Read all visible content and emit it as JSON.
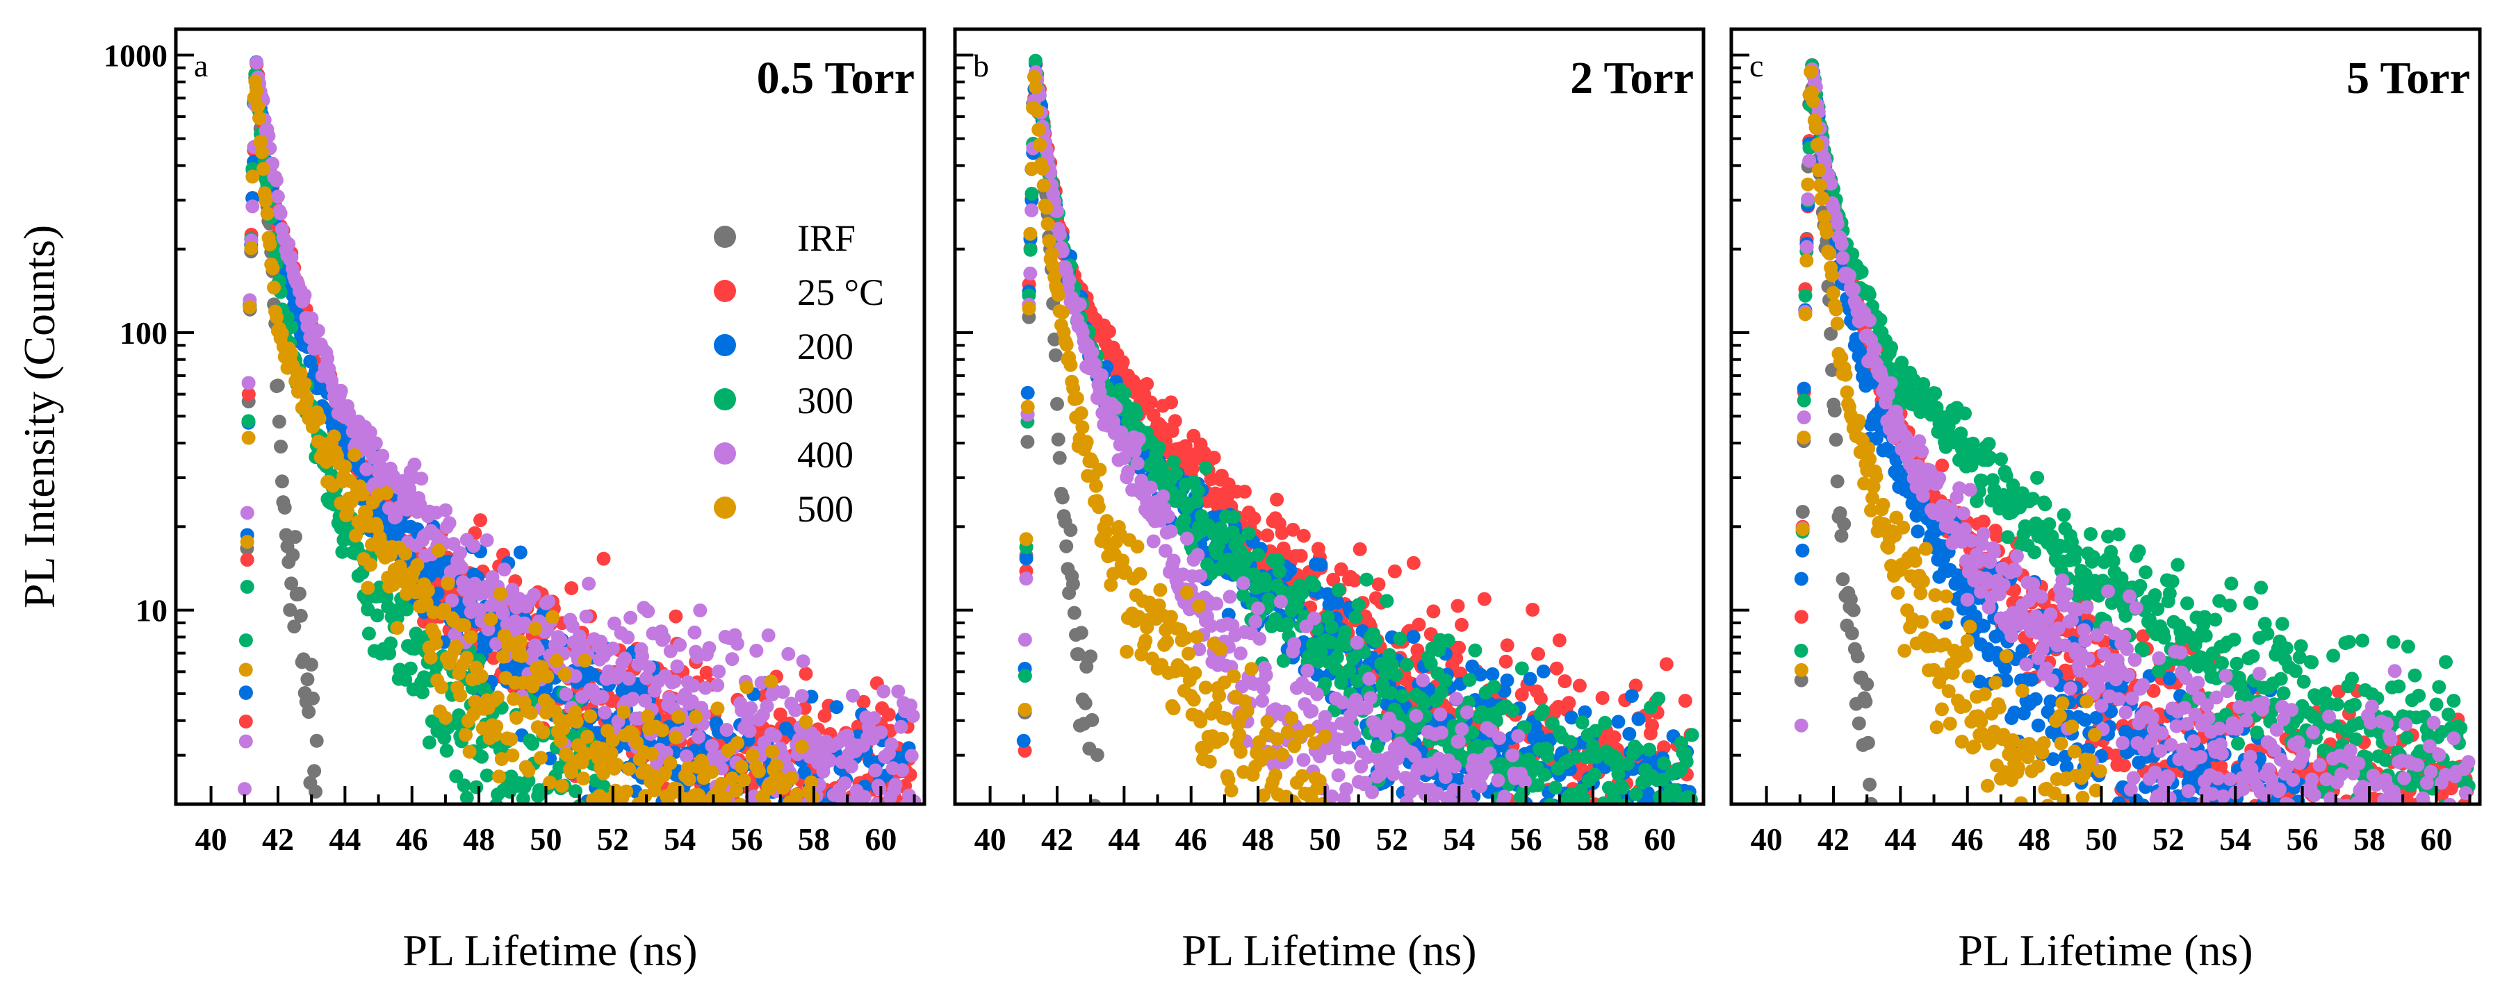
{
  "chart_data": {
    "type": "scatter",
    "y_scale": "log",
    "ylabel": "PL Intensity (Counts)",
    "xlabel": "PL Lifetime (ns)",
    "xlim": [
      38.95,
      61.3
    ],
    "ylim": [
      2,
      1240
    ],
    "x_ticks": [
      40,
      42,
      44,
      46,
      48,
      50,
      52,
      54,
      56,
      58,
      60
    ],
    "y_ticks": [
      10,
      100,
      1000
    ],
    "y_tick_labels": [
      "10",
      "100",
      "1000"
    ],
    "grid": false,
    "legend": {
      "placement": "center-right of panel a",
      "entries": [
        {
          "label": "IRF",
          "color": "#767676"
        },
        {
          "label": "25 °C",
          "color": "#ff4040"
        },
        {
          "label": "200",
          "color": "#0070e0"
        },
        {
          "label": "300",
          "color": "#00b06a"
        },
        {
          "label": "400",
          "color": "#c27ae0"
        },
        {
          "label": "500",
          "color": "#dc9a00"
        }
      ]
    },
    "panels": [
      {
        "letter": "a",
        "title": "0.5 Torr",
        "series": [
          {
            "name": "IRF",
            "points": [
              [
                41.0,
                2
              ],
              [
                41.15,
                100
              ],
              [
                41.3,
                900
              ],
              [
                41.5,
                500
              ],
              [
                41.8,
                200
              ],
              [
                42.0,
                60
              ],
              [
                42.2,
                20
              ],
              [
                42.5,
                10
              ],
              [
                42.8,
                6
              ],
              [
                43.0,
                4
              ],
              [
                43.2,
                2
              ]
            ]
          },
          {
            "name": "25 °C",
            "points": [
              [
                41.0,
                2
              ],
              [
                41.15,
                120
              ],
              [
                41.35,
                950
              ],
              [
                41.6,
                500
              ],
              [
                42.0,
                250
              ],
              [
                42.5,
                150
              ],
              [
                43.0,
                100
              ],
              [
                43.7,
                50
              ],
              [
                44.5,
                30
              ],
              [
                45.5,
                20
              ],
              [
                47,
                12
              ],
              [
                49,
                8
              ],
              [
                51,
                5
              ],
              [
                54,
                3.5
              ],
              [
                57,
                2.6
              ],
              [
                61,
                2.2
              ]
            ]
          },
          {
            "name": "200",
            "points": [
              [
                41.0,
                2
              ],
              [
                41.15,
                120
              ],
              [
                41.35,
                950
              ],
              [
                41.6,
                480
              ],
              [
                42.0,
                220
              ],
              [
                42.7,
                100
              ],
              [
                43.6,
                50
              ],
              [
                44.8,
                25
              ],
              [
                46,
                15
              ],
              [
                47.5,
                10
              ],
              [
                49.5,
                6
              ],
              [
                52,
                4
              ],
              [
                55,
                2.5
              ],
              [
                58,
                2.1
              ],
              [
                61,
                2
              ]
            ]
          },
          {
            "name": "300",
            "points": [
              [
                41.0,
                2
              ],
              [
                41.15,
                120
              ],
              [
                41.3,
                900
              ],
              [
                41.6,
                400
              ],
              [
                42.0,
                160
              ],
              [
                42.3,
                100
              ],
              [
                43.5,
                30
              ],
              [
                44.3,
                15
              ],
              [
                45.5,
                8
              ],
              [
                47,
                5
              ],
              [
                48.5,
                3
              ],
              [
                50,
                2.1
              ],
              [
                52,
                2
              ]
            ]
          },
          {
            "name": "400",
            "points": [
              [
                41.0,
                2
              ],
              [
                41.15,
                120
              ],
              [
                41.35,
                950
              ],
              [
                41.7,
                500
              ],
              [
                42.2,
                220
              ],
              [
                43.0,
                100
              ],
              [
                44.1,
                50
              ],
              [
                45,
                30
              ],
              [
                46.5,
                20
              ],
              [
                48,
                12
              ],
              [
                50,
                8
              ],
              [
                52,
                6
              ],
              [
                55,
                4
              ],
              [
                58,
                3
              ],
              [
                61,
                2.5
              ]
            ]
          },
          {
            "name": "500",
            "points": [
              [
                41.0,
                2
              ],
              [
                41.15,
                100
              ],
              [
                41.3,
                900
              ],
              [
                41.6,
                350
              ],
              [
                42.0,
                100
              ],
              [
                43,
                50
              ],
              [
                44.5,
                20
              ],
              [
                46,
                12
              ],
              [
                47,
                7
              ],
              [
                48.5,
                5
              ],
              [
                50,
                4
              ],
              [
                52,
                2.5
              ],
              [
                54,
                2.1
              ],
              [
                58,
                2
              ]
            ]
          }
        ]
      },
      {
        "letter": "b",
        "title": "2 Torr",
        "series": [
          {
            "name": "IRF",
            "points": [
              [
                41.0,
                2
              ],
              [
                41.15,
                100
              ],
              [
                41.3,
                900
              ],
              [
                41.5,
                500
              ],
              [
                41.8,
                200
              ],
              [
                42.0,
                60
              ],
              [
                42.2,
                20
              ],
              [
                42.5,
                10
              ],
              [
                42.8,
                6
              ],
              [
                43.0,
                4
              ],
              [
                43.2,
                2
              ]
            ]
          },
          {
            "name": "25 °C",
            "points": [
              [
                41.0,
                2
              ],
              [
                41.15,
                120
              ],
              [
                41.35,
                950
              ],
              [
                41.7,
                450
              ],
              [
                42.2,
                200
              ],
              [
                43.25,
                98
              ],
              [
                45.55,
                37
              ],
              [
                48.1,
                17.5
              ],
              [
                51.8,
                7.4
              ],
              [
                54.7,
                4
              ],
              [
                59.7,
                2.4
              ],
              [
                61,
                2.2
              ]
            ]
          },
          {
            "name": "200",
            "points": [
              [
                41.0,
                2
              ],
              [
                41.15,
                120
              ],
              [
                41.35,
                950
              ],
              [
                41.7,
                430
              ],
              [
                42.2,
                190
              ],
              [
                43.2,
                70
              ],
              [
                46.1,
                21
              ],
              [
                49,
                9.1
              ],
              [
                51.8,
                4.9
              ],
              [
                54.7,
                3.3
              ],
              [
                57,
                2.3
              ],
              [
                61,
                2
              ]
            ]
          },
          {
            "name": "300",
            "points": [
              [
                41.0,
                2
              ],
              [
                41.15,
                120
              ],
              [
                41.35,
                950
              ],
              [
                41.7,
                430
              ],
              [
                42.2,
                190
              ],
              [
                43.2,
                72
              ],
              [
                46.1,
                22
              ],
              [
                49,
                9.5
              ],
              [
                51.8,
                5.2
              ],
              [
                54.7,
                3.5
              ],
              [
                57,
                2.4
              ],
              [
                61,
                2
              ]
            ]
          },
          {
            "name": "400",
            "points": [
              [
                41.0,
                2
              ],
              [
                41.15,
                110
              ],
              [
                41.35,
                950
              ],
              [
                41.7,
                420
              ],
              [
                42.2,
                180
              ],
              [
                43.2,
                60
              ],
              [
                45,
                20.7
              ],
              [
                47.5,
                6
              ],
              [
                50.4,
                3.3
              ],
              [
                53.5,
                2.4
              ],
              [
                56,
                2
              ]
            ]
          },
          {
            "name": "500",
            "points": [
              [
                41.0,
                2
              ],
              [
                41.15,
                100
              ],
              [
                41.3,
                900
              ],
              [
                41.5,
                450
              ],
              [
                41.8,
                195
              ],
              [
                42.7,
                47
              ],
              [
                43.5,
                17.5
              ],
              [
                45.4,
                7.4
              ],
              [
                46.8,
                3.7
              ],
              [
                48.3,
                2.4
              ],
              [
                50,
                2
              ]
            ]
          }
        ]
      },
      {
        "letter": "c",
        "title": "5 Torr",
        "series": [
          {
            "name": "IRF",
            "points": [
              [
                41.0,
                2
              ],
              [
                41.15,
                100
              ],
              [
                41.3,
                900
              ],
              [
                41.5,
                500
              ],
              [
                41.8,
                200
              ],
              [
                42.0,
                60
              ],
              [
                42.2,
                20
              ],
              [
                42.5,
                10
              ],
              [
                42.8,
                6
              ],
              [
                43.0,
                4
              ],
              [
                43.2,
                2
              ]
            ]
          },
          {
            "name": "25 °C",
            "points": [
              [
                41.0,
                2
              ],
              [
                41.15,
                120
              ],
              [
                41.35,
                950
              ],
              [
                41.7,
                450
              ],
              [
                42.3,
                180
              ],
              [
                43.8,
                45
              ],
              [
                46,
                16.2
              ],
              [
                48.8,
                7.1
              ],
              [
                51.8,
                3.8
              ],
              [
                54.6,
                2.5
              ],
              [
                57,
                2.1
              ],
              [
                61,
                2
              ]
            ]
          },
          {
            "name": "200",
            "points": [
              [
                41.0,
                2
              ],
              [
                41.15,
                120
              ],
              [
                41.35,
                950
              ],
              [
                41.7,
                420
              ],
              [
                42.2,
                170
              ],
              [
                43.1,
                56
              ],
              [
                45.3,
                16
              ],
              [
                47.4,
                5.8
              ],
              [
                50.3,
                3.3
              ],
              [
                53,
                2.2
              ],
              [
                56,
                2
              ]
            ]
          },
          {
            "name": "300",
            "points": [
              [
                41.0,
                2
              ],
              [
                41.15,
                120
              ],
              [
                41.35,
                950
              ],
              [
                41.7,
                480
              ],
              [
                42.3,
                220
              ],
              [
                43.8,
                75
              ],
              [
                46.7,
                30
              ],
              [
                49.6,
                13.2
              ],
              [
                53.2,
                7.1
              ],
              [
                57.5,
                3.8
              ],
              [
                60.4,
                2.9
              ],
              [
                61,
                2.8
              ]
            ]
          },
          {
            "name": "400",
            "points": [
              [
                41.0,
                2
              ],
              [
                41.15,
                120
              ],
              [
                41.35,
                950
              ],
              [
                41.7,
                450
              ],
              [
                42.3,
                185
              ],
              [
                43.8,
                48
              ],
              [
                46,
                17
              ],
              [
                48.8,
                7.5
              ],
              [
                51.8,
                4
              ],
              [
                54.6,
                2.7
              ],
              [
                57,
                2.2
              ],
              [
                61,
                2
              ]
            ]
          },
          {
            "name": "500",
            "points": [
              [
                41.0,
                2
              ],
              [
                41.15,
                100
              ],
              [
                41.3,
                900
              ],
              [
                41.6,
                350
              ],
              [
                42.4,
                56
              ],
              [
                43.8,
                16
              ],
              [
                45.3,
                7.1
              ],
              [
                46.7,
                3.8
              ],
              [
                48,
                2.4
              ],
              [
                50,
                2
              ]
            ]
          }
        ]
      }
    ]
  }
}
